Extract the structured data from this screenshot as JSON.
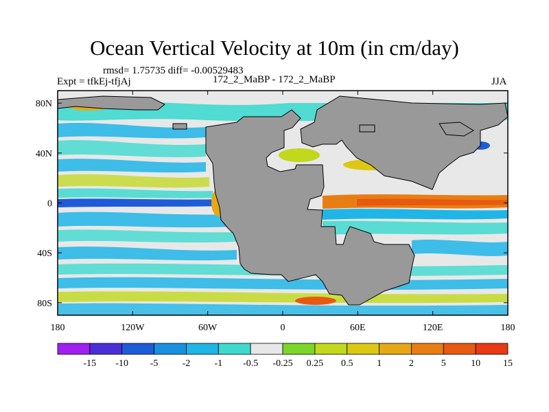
{
  "title": "Ocean Vertical Velocity at 10m (in cm/day)",
  "stats_line": "rmsd= 1.75735 diff= -0.00529483",
  "expt_line": "Expt = tfkEj-tfjAj",
  "center_label": "172_2_MaBP - 172_2_MaBP",
  "season": "JJA",
  "map": {
    "lon_ticks": [
      "180",
      "120W",
      "60W",
      "0",
      "60E",
      "120E",
      "180"
    ],
    "lat_ticks": [
      "80N",
      "40N",
      "0",
      "40S",
      "80S"
    ],
    "land_color": "#999999"
  },
  "colorbar": {
    "labels": [
      "-15",
      "-10",
      "-5",
      "-2",
      "-1",
      "-0.5",
      "-0.25",
      "0.25",
      "0.5",
      "1",
      "2",
      "5",
      "10",
      "15"
    ],
    "colors": [
      "#a020f0",
      "#4b2fd6",
      "#1e5bd8",
      "#1790e0",
      "#1fb5e6",
      "#3fd9d0",
      "#e8e8e8",
      "#7cd62a",
      "#c2d81c",
      "#dcc814",
      "#e6a814",
      "#e87e12",
      "#e85a10",
      "#e83a14"
    ]
  }
}
